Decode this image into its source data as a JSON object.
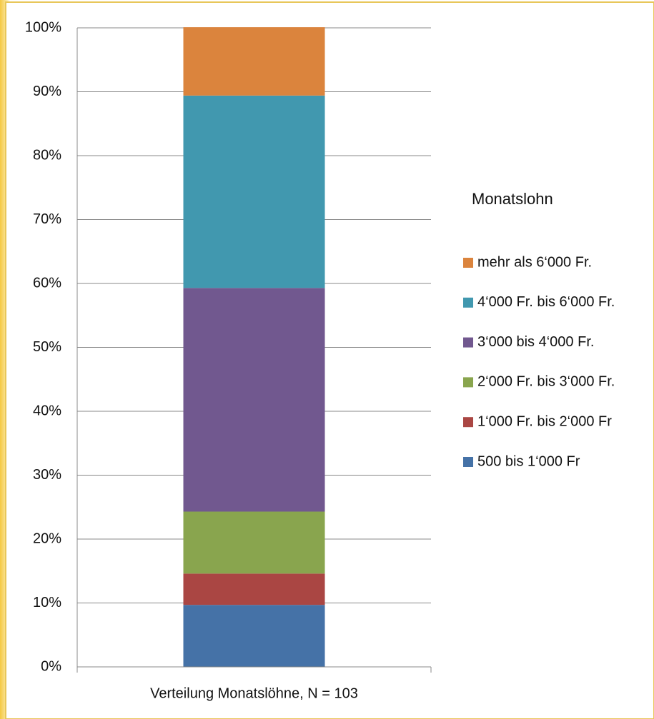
{
  "chart_data": {
    "type": "bar",
    "stacked": true,
    "categories": [
      "Verteilung Monatslöhne, N = 103"
    ],
    "legend_title": "Monatslohn",
    "legend": "right",
    "series": [
      {
        "name": "500 bis 1‘000 Fr",
        "color": "#4572a7",
        "values": [
          9.7
        ]
      },
      {
        "name": "1‘000 Fr. bis 2‘000 Fr",
        "color": "#aa4643",
        "values": [
          4.9
        ]
      },
      {
        "name": "2‘000 Fr. bis 3‘000 Fr.",
        "color": "#89a54e",
        "values": [
          9.7
        ]
      },
      {
        "name": "3‘000 bis 4‘000 Fr.",
        "color": "#71588f",
        "values": [
          35.0
        ]
      },
      {
        "name": "4‘000 Fr. bis 6‘000 Fr.",
        "color": "#4198af",
        "values": [
          30.1
        ]
      },
      {
        "name": "mehr als 6‘000 Fr.",
        "color": "#db843d",
        "values": [
          10.7
        ]
      }
    ],
    "ylim": [
      0,
      100
    ],
    "yticks": [
      {
        "value": 0,
        "label": "0%"
      },
      {
        "value": 10,
        "label": "10%"
      },
      {
        "value": 20,
        "label": "20%"
      },
      {
        "value": 30,
        "label": "30%"
      },
      {
        "value": 40,
        "label": "40%"
      },
      {
        "value": 50,
        "label": "50%"
      },
      {
        "value": 60,
        "label": "60%"
      },
      {
        "value": 70,
        "label": "70%"
      },
      {
        "value": 80,
        "label": "80%"
      },
      {
        "value": 90,
        "label": "90%"
      },
      {
        "value": 100,
        "label": "100%"
      }
    ],
    "grid": true
  }
}
